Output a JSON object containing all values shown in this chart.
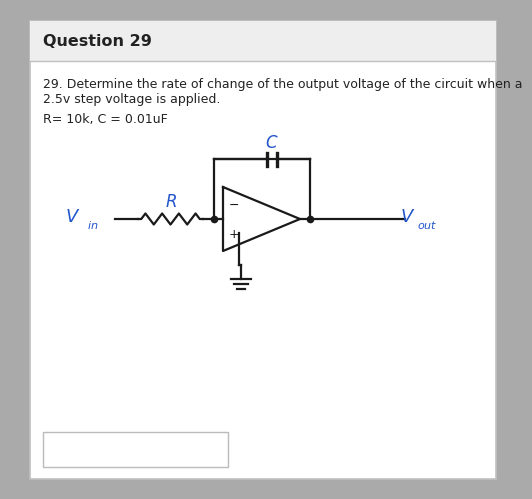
{
  "title": "Question 29",
  "q_line1": "29. Determine the rate of change of the output voltage of the circuit when a",
  "q_line2": "2.5v step voltage is applied.",
  "params": "R= 10k, C = 0.01uF",
  "bg_color": "#ffffff",
  "outer_border_color": "#c0c0c0",
  "title_bg": "#eeeeee",
  "text_color": "#222222",
  "blue_color": "#2255cc",
  "cc": "#1a1a1a",
  "ans_border": "#bbbbbb"
}
